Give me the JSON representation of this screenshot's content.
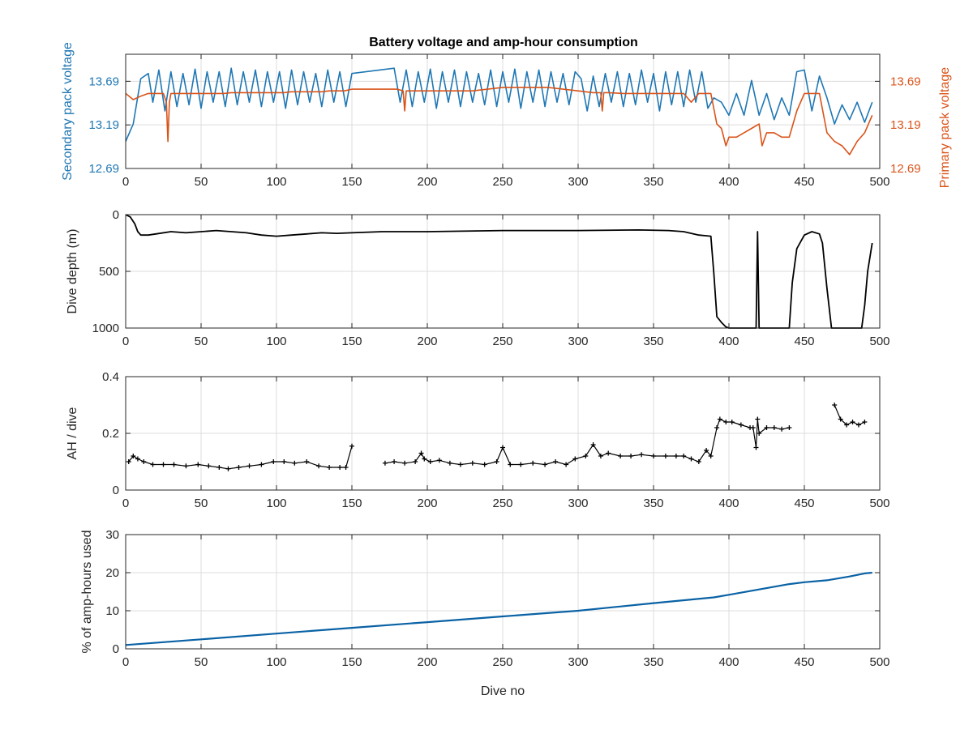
{
  "figure": {
    "title": "Battery voltage and amp-hour consumption",
    "colors": {
      "secondary": "#1f77b4",
      "primary": "#d95319",
      "black": "#000000",
      "cumulative": "#0a62a5"
    }
  },
  "chart_data": [
    {
      "type": "line",
      "title": "Battery voltage and amp-hour consumption",
      "xlabel": "",
      "ylabel": "Secondary pack voltage",
      "ylabel_right": "Primary pack voltage",
      "xlim": [
        0,
        500
      ],
      "ylim": [
        12.69,
        14.0
      ],
      "ylim_right": [
        12.69,
        14.0
      ],
      "xticks": [
        "0",
        "50",
        "100",
        "150",
        "200",
        "250",
        "300",
        "350",
        "400",
        "450",
        "500"
      ],
      "yticks": [
        "12.69",
        "13.19",
        "13.69"
      ],
      "yticks_right": [
        "12.69",
        "13.19",
        "13.69"
      ],
      "grid": true,
      "series": [
        {
          "name": "",
          "axis": "left",
          "color": "#1f77b4",
          "x": [
            0,
            5,
            10,
            15,
            18,
            22,
            26,
            30,
            34,
            38,
            42,
            46,
            50,
            54,
            58,
            62,
            66,
            70,
            74,
            78,
            82,
            86,
            90,
            94,
            98,
            102,
            106,
            110,
            114,
            118,
            122,
            126,
            130,
            134,
            138,
            142,
            146,
            150,
            178,
            182,
            186,
            190,
            194,
            198,
            202,
            206,
            210,
            214,
            218,
            222,
            226,
            230,
            234,
            238,
            242,
            246,
            250,
            254,
            258,
            262,
            266,
            270,
            274,
            278,
            282,
            286,
            290,
            294,
            298,
            302,
            306,
            310,
            314,
            318,
            322,
            326,
            330,
            334,
            338,
            342,
            346,
            350,
            354,
            358,
            362,
            366,
            370,
            374,
            378,
            382,
            386,
            390,
            395,
            400,
            405,
            410,
            415,
            420,
            425,
            430,
            435,
            440,
            445,
            450,
            455,
            460,
            465,
            470,
            475,
            480,
            485,
            490,
            495
          ],
          "y": [
            13.0,
            13.2,
            13.72,
            13.78,
            13.45,
            13.82,
            13.35,
            13.8,
            13.4,
            13.78,
            13.42,
            13.83,
            13.38,
            13.8,
            13.45,
            13.8,
            13.4,
            13.84,
            13.42,
            13.8,
            13.45,
            13.82,
            13.4,
            13.8,
            13.45,
            13.8,
            13.38,
            13.82,
            13.42,
            13.8,
            13.45,
            13.78,
            13.4,
            13.82,
            13.45,
            13.8,
            13.4,
            13.78,
            13.84,
            13.45,
            13.82,
            13.4,
            13.8,
            13.45,
            13.83,
            13.38,
            13.8,
            13.45,
            13.82,
            13.4,
            13.8,
            13.45,
            13.78,
            13.42,
            13.82,
            13.4,
            13.8,
            13.45,
            13.83,
            13.38,
            13.8,
            13.45,
            13.82,
            13.4,
            13.8,
            13.45,
            13.78,
            13.42,
            13.8,
            13.72,
            13.35,
            13.75,
            13.4,
            13.78,
            13.45,
            13.8,
            13.4,
            13.78,
            13.42,
            13.82,
            13.45,
            13.78,
            13.35,
            13.8,
            13.42,
            13.8,
            13.4,
            13.82,
            13.45,
            13.8,
            13.38,
            13.5,
            13.45,
            13.3,
            13.55,
            13.3,
            13.7,
            13.3,
            13.55,
            13.25,
            13.5,
            13.3,
            13.8,
            13.82,
            13.35,
            13.75,
            13.5,
            13.2,
            13.42,
            13.25,
            13.45,
            13.22,
            13.45
          ]
        },
        {
          "name": "",
          "axis": "right",
          "color": "#d95319",
          "x": [
            0,
            5,
            10,
            15,
            20,
            25,
            27,
            28,
            29,
            30,
            35,
            40,
            45,
            50,
            55,
            60,
            65,
            70,
            75,
            80,
            85,
            90,
            95,
            100,
            105,
            110,
            115,
            120,
            125,
            130,
            135,
            140,
            145,
            150,
            160,
            170,
            180,
            184,
            185,
            186,
            190,
            200,
            210,
            220,
            230,
            240,
            250,
            260,
            270,
            280,
            290,
            300,
            310,
            315,
            316,
            317,
            320,
            330,
            340,
            350,
            360,
            370,
            375,
            380,
            385,
            388,
            392,
            395,
            398,
            400,
            405,
            410,
            415,
            420,
            422,
            425,
            430,
            435,
            440,
            445,
            450,
            455,
            460,
            465,
            470,
            475,
            480,
            485,
            490,
            495
          ],
          "y": [
            13.55,
            13.48,
            13.52,
            13.55,
            13.55,
            13.55,
            13.45,
            13.0,
            13.45,
            13.55,
            13.55,
            13.55,
            13.55,
            13.55,
            13.55,
            13.55,
            13.55,
            13.56,
            13.56,
            13.56,
            13.56,
            13.56,
            13.56,
            13.56,
            13.56,
            13.57,
            13.57,
            13.57,
            13.57,
            13.57,
            13.58,
            13.58,
            13.58,
            13.6,
            13.6,
            13.6,
            13.6,
            13.58,
            13.35,
            13.58,
            13.58,
            13.58,
            13.58,
            13.58,
            13.58,
            13.6,
            13.62,
            13.62,
            13.62,
            13.62,
            13.6,
            13.58,
            13.56,
            13.56,
            13.35,
            13.56,
            13.56,
            13.55,
            13.55,
            13.55,
            13.55,
            13.55,
            13.45,
            13.55,
            13.55,
            13.55,
            13.2,
            13.15,
            12.95,
            13.05,
            13.05,
            13.1,
            13.15,
            13.2,
            12.95,
            13.1,
            13.1,
            13.05,
            13.05,
            13.35,
            13.55,
            13.55,
            13.55,
            13.1,
            13.0,
            12.95,
            12.85,
            13.0,
            13.1,
            13.3
          ]
        }
      ]
    },
    {
      "type": "line",
      "xlabel": "",
      "ylabel": "Dive depth (m)",
      "xlim": [
        0,
        500
      ],
      "ylim": [
        0,
        1000
      ],
      "y_reversed": true,
      "xticks": [
        "0",
        "50",
        "100",
        "150",
        "200",
        "250",
        "300",
        "350",
        "400",
        "450",
        "500"
      ],
      "yticks": [
        "0",
        "500",
        "1000"
      ],
      "grid": true,
      "series": [
        {
          "name": "",
          "color": "#000000",
          "x": [
            0,
            3,
            6,
            8,
            10,
            15,
            20,
            30,
            40,
            50,
            60,
            70,
            80,
            90,
            100,
            110,
            120,
            130,
            140,
            150,
            170,
            200,
            250,
            300,
            340,
            360,
            370,
            380,
            388,
            390,
            392,
            395,
            398,
            400,
            418,
            419,
            420,
            421,
            422,
            440,
            442,
            445,
            450,
            455,
            460,
            462,
            465,
            468,
            470,
            480,
            488,
            490,
            492,
            495
          ],
          "y": [
            0,
            20,
            80,
            150,
            180,
            180,
            170,
            150,
            160,
            150,
            140,
            150,
            160,
            180,
            190,
            180,
            170,
            160,
            165,
            160,
            150,
            150,
            140,
            140,
            135,
            140,
            150,
            180,
            190,
            520,
            900,
            950,
            990,
            1000,
            1000,
            150,
            1000,
            1000,
            1000,
            1000,
            600,
            300,
            180,
            150,
            170,
            250,
            650,
            1000,
            1000,
            1000,
            1000,
            800,
            500,
            250
          ]
        }
      ]
    },
    {
      "type": "scatter",
      "xlabel": "",
      "ylabel": "AH / dive",
      "xlim": [
        0,
        500
      ],
      "ylim": [
        0,
        0.4
      ],
      "xticks": [
        "0",
        "50",
        "100",
        "150",
        "200",
        "250",
        "300",
        "350",
        "400",
        "450",
        "500"
      ],
      "yticks": [
        "0",
        "0.2",
        "0.4"
      ],
      "grid": true,
      "series": [
        {
          "name": "",
          "color": "#000000",
          "x": [
            2,
            5,
            8,
            12,
            18,
            25,
            32,
            40,
            48,
            55,
            62,
            68,
            75,
            82,
            90,
            98,
            105,
            112,
            120,
            128,
            135,
            142,
            146,
            150,
            172,
            178,
            185,
            192,
            196,
            198,
            202,
            208,
            215,
            222,
            230,
            238,
            246,
            250,
            255,
            262,
            270,
            278,
            285,
            292,
            298,
            305,
            310,
            315,
            320,
            328,
            335,
            342,
            350,
            358,
            365,
            370,
            375,
            380,
            385,
            388,
            392,
            394,
            398,
            402,
            408,
            414,
            416,
            418,
            419,
            420,
            425,
            430,
            435,
            440,
            470,
            474,
            478,
            482,
            486,
            490
          ],
          "y": [
            0.1,
            0.12,
            0.11,
            0.1,
            0.09,
            0.09,
            0.09,
            0.085,
            0.09,
            0.085,
            0.08,
            0.075,
            0.08,
            0.085,
            0.09,
            0.1,
            0.1,
            0.095,
            0.1,
            0.085,
            0.08,
            0.08,
            0.08,
            0.155,
            0.095,
            0.1,
            0.095,
            0.1,
            0.13,
            0.11,
            0.1,
            0.105,
            0.095,
            0.09,
            0.095,
            0.09,
            0.1,
            0.15,
            0.09,
            0.09,
            0.095,
            0.09,
            0.1,
            0.09,
            0.11,
            0.12,
            0.16,
            0.12,
            0.13,
            0.12,
            0.12,
            0.125,
            0.12,
            0.12,
            0.12,
            0.12,
            0.11,
            0.1,
            0.14,
            0.12,
            0.22,
            0.25,
            0.24,
            0.24,
            0.23,
            0.22,
            0.22,
            0.15,
            0.25,
            0.2,
            0.22,
            0.22,
            0.215,
            0.22,
            0.3,
            0.25,
            0.23,
            0.24,
            0.23,
            0.24
          ]
        }
      ]
    },
    {
      "type": "line",
      "xlabel": "Dive no",
      "ylabel": "% of amp-hours used",
      "xlim": [
        0,
        500
      ],
      "ylim": [
        0,
        30
      ],
      "xticks": [
        "0",
        "50",
        "100",
        "150",
        "200",
        "250",
        "300",
        "350",
        "400",
        "450",
        "500"
      ],
      "yticks": [
        "0",
        "10",
        "20",
        "30"
      ],
      "grid": true,
      "series": [
        {
          "name": "",
          "color": "#0a62a5",
          "x": [
            0,
            50,
            100,
            150,
            200,
            250,
            300,
            350,
            390,
            400,
            420,
            440,
            450,
            465,
            480,
            490,
            495
          ],
          "y": [
            1,
            2.5,
            4,
            5.5,
            7,
            8.5,
            10,
            12,
            13.5,
            14.2,
            15.6,
            17,
            17.5,
            18,
            19,
            19.8,
            20
          ]
        }
      ]
    }
  ]
}
